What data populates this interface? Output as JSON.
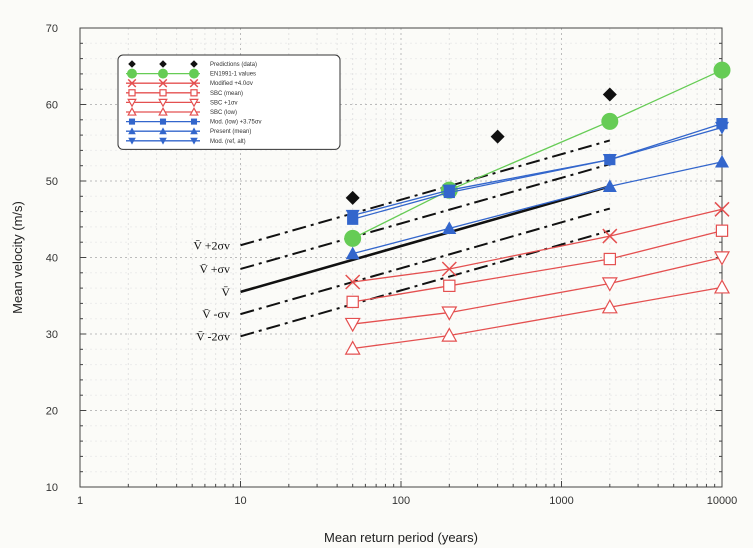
{
  "chart_data": {
    "type": "line",
    "title": "",
    "xlabel": "Mean return period (years)",
    "ylabel": "Mean velocity (m/s)",
    "x_scale": "log",
    "xlim": [
      1,
      10000
    ],
    "ylim": [
      10,
      70
    ],
    "x_ticks": [
      1,
      10,
      100,
      1000,
      10000
    ],
    "x_tick_labels": [
      "1",
      "10",
      "100",
      "1000",
      "10000"
    ],
    "y_ticks": [
      10,
      20,
      30,
      40,
      50,
      60,
      70
    ],
    "y_tick_labels": [
      "10",
      "20",
      "30",
      "40",
      "50",
      "60",
      "70"
    ],
    "grid": true,
    "legend_position": "top-left",
    "series": [
      {
        "name": "Predictions (data)",
        "color": "#111111",
        "marker": "diamond",
        "line": "none",
        "x": [
          50,
          400,
          2000
        ],
        "y": [
          47.8,
          55.8,
          61.3
        ]
      },
      {
        "name": "EN1991-1 values",
        "color": "#66cc55",
        "marker": "circle",
        "line": "solid",
        "x": [
          50,
          200,
          2000,
          10000
        ],
        "y": [
          42.5,
          48.8,
          57.8,
          64.5
        ]
      },
      {
        "name": "Modified +4.0σv",
        "color": "#e45050",
        "marker": "x",
        "line": "solid",
        "x": [
          50,
          200,
          2000,
          10000
        ],
        "y": [
          36.8,
          38.5,
          42.8,
          46.3
        ]
      },
      {
        "name": "SBC (mean)",
        "color": "#e45050",
        "marker": "square-open",
        "line": "solid",
        "x": [
          50,
          200,
          2000,
          10000
        ],
        "y": [
          34.2,
          36.3,
          39.8,
          43.5
        ]
      },
      {
        "name": "SBC +1σv",
        "color": "#e45050",
        "marker": "triangle-down-open",
        "line": "solid",
        "x": [
          50,
          200,
          2000,
          10000
        ],
        "y": [
          31.3,
          32.8,
          36.6,
          40.0
        ]
      },
      {
        "name": "SBC (low)",
        "color": "#e45050",
        "marker": "triangle-open",
        "line": "solid",
        "x": [
          50,
          200,
          2000,
          10000
        ],
        "y": [
          28.1,
          29.8,
          33.5,
          36.1
        ]
      },
      {
        "name": "Mod. (low) +3.75σv",
        "color": "#3366cc",
        "marker": "square",
        "line": "solid",
        "x": [
          50,
          200,
          2000,
          10000
        ],
        "y": [
          45.0,
          48.5,
          52.8,
          57.5
        ]
      },
      {
        "name": "Present (mean)",
        "color": "#3366cc",
        "marker": "triangle",
        "line": "solid",
        "x": [
          50,
          200,
          2000,
          10000
        ],
        "y": [
          40.5,
          43.8,
          49.3,
          52.5
        ]
      },
      {
        "name": "Mod. (ref, alt)",
        "color": "#3366cc",
        "marker": "triangle-down",
        "line": "solid",
        "x": [
          50,
          200,
          2000,
          10000
        ],
        "y": [
          45.5,
          48.8,
          52.8,
          57.0
        ]
      }
    ],
    "reference_lines": [
      {
        "label": "V̄ +2σv",
        "style": "dashdot",
        "x": [
          10,
          2000
        ],
        "y": [
          41.6,
          55.3
        ]
      },
      {
        "label": "V̄ +σv",
        "style": "dashdot",
        "x": [
          10,
          2000
        ],
        "y": [
          38.5,
          52.2
        ]
      },
      {
        "label": "V̄",
        "style": "solid",
        "x": [
          10,
          2000
        ],
        "y": [
          35.5,
          49.3
        ]
      },
      {
        "label": "V̄ -σv",
        "style": "dashdot",
        "x": [
          10,
          2000
        ],
        "y": [
          32.6,
          46.4
        ]
      },
      {
        "label": "V̄ -2σv",
        "style": "dashdot",
        "x": [
          10,
          2000
        ],
        "y": [
          29.7,
          43.5
        ]
      }
    ]
  }
}
